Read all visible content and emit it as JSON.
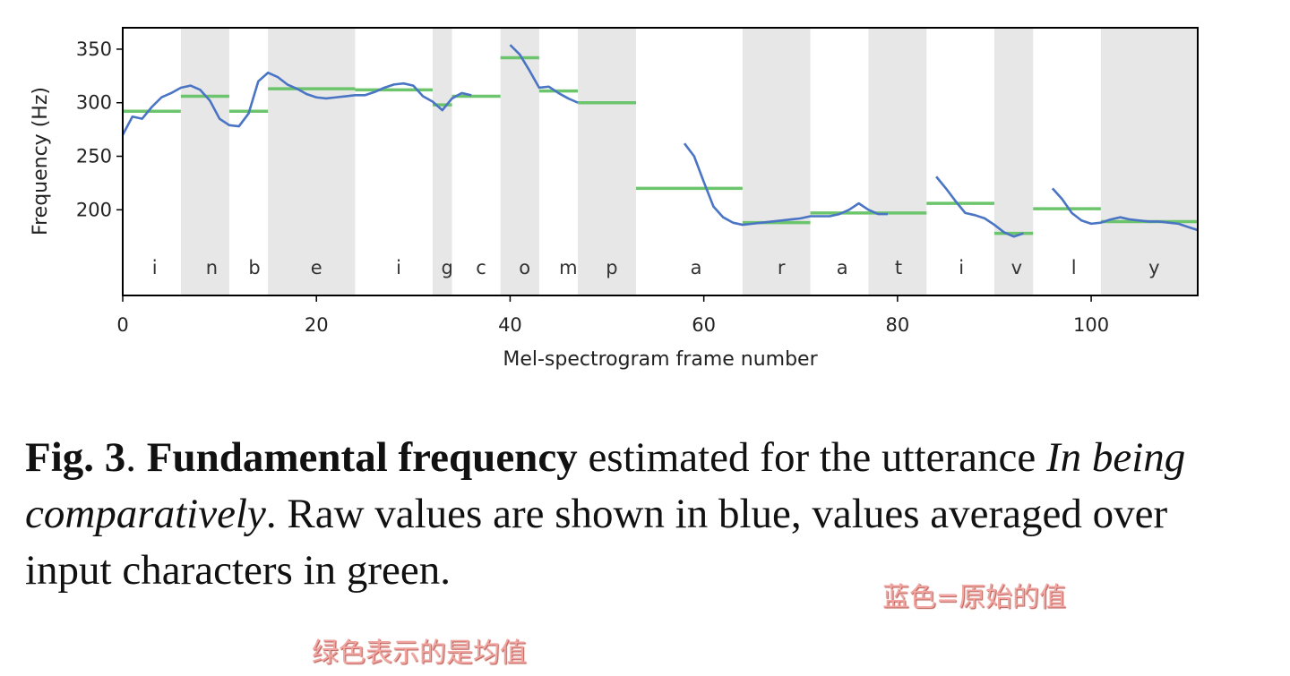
{
  "chart_data": {
    "type": "line",
    "title": "",
    "xlabel": "Mel-spectrogram frame number",
    "ylabel": "Frequency (Hz)",
    "xlim": [
      0,
      111
    ],
    "ylim": [
      120,
      370
    ],
    "x_ticks": [
      0,
      20,
      40,
      60,
      80,
      100
    ],
    "y_ticks": [
      200,
      250,
      300,
      350
    ],
    "grid": false,
    "legend": "none",
    "colors": {
      "raw": "#4a74c4",
      "avg": "#6cc56c",
      "shade": "#e7e7e7",
      "axis": "#000000"
    },
    "shaded_spans": [
      [
        6,
        11
      ],
      [
        15,
        24
      ],
      [
        32,
        34
      ],
      [
        39,
        43
      ],
      [
        47,
        53
      ],
      [
        64,
        71
      ],
      [
        77,
        83
      ],
      [
        90,
        94
      ],
      [
        101,
        111
      ]
    ],
    "characters": [
      {
        "char": "i",
        "x": 3.3
      },
      {
        "char": "n",
        "x": 9.2
      },
      {
        "char": "b",
        "x": 13.6
      },
      {
        "char": "e",
        "x": 20.0
      },
      {
        "char": "i",
        "x": 28.5
      },
      {
        "char": "g",
        "x": 33.5
      },
      {
        "char": "c",
        "x": 37.0
      },
      {
        "char": "o",
        "x": 41.5
      },
      {
        "char": "m",
        "x": 46.0
      },
      {
        "char": "p",
        "x": 50.5
      },
      {
        "char": "a",
        "x": 59.2
      },
      {
        "char": "r",
        "x": 68.0
      },
      {
        "char": "a",
        "x": 74.3
      },
      {
        "char": "t",
        "x": 80.1
      },
      {
        "char": "i",
        "x": 86.6
      },
      {
        "char": "v",
        "x": 92.3
      },
      {
        "char": "l",
        "x": 98.2
      },
      {
        "char": "y",
        "x": 106.5
      }
    ],
    "series": [
      {
        "name": "raw",
        "segments": [
          [
            [
              0,
              270
            ],
            [
              1,
              287
            ],
            [
              2,
              285
            ],
            [
              3,
              296
            ],
            [
              4,
              305
            ],
            [
              5,
              309
            ],
            [
              6,
              314
            ],
            [
              7,
              316
            ],
            [
              8,
              312
            ],
            [
              9,
              302
            ],
            [
              10,
              285
            ],
            [
              11,
              279
            ],
            [
              12,
              278
            ],
            [
              13,
              290
            ],
            [
              14,
              320
            ],
            [
              15,
              328
            ],
            [
              16,
              324
            ],
            [
              17,
              317
            ],
            [
              18,
              313
            ],
            [
              19,
              308
            ],
            [
              20,
              305
            ],
            [
              21,
              304
            ],
            [
              22,
              305
            ],
            [
              23,
              306
            ],
            [
              24,
              307
            ],
            [
              25,
              307
            ],
            [
              26,
              310
            ],
            [
              27,
              314
            ],
            [
              28,
              317
            ],
            [
              29,
              318
            ],
            [
              30,
              316
            ],
            [
              31,
              306
            ],
            [
              32,
              301
            ],
            [
              33,
              293
            ],
            [
              34,
              304
            ],
            [
              35,
              309
            ],
            [
              36,
              307
            ]
          ],
          [
            [
              40,
              354
            ],
            [
              41,
              345
            ],
            [
              42,
              330
            ],
            [
              43,
              314
            ],
            [
              44,
              315
            ],
            [
              45,
              309
            ],
            [
              46,
              304
            ],
            [
              47,
              300
            ]
          ],
          [
            [
              58,
              262
            ],
            [
              59,
              250
            ],
            [
              60,
              226
            ],
            [
              61,
              203
            ],
            [
              62,
              193
            ],
            [
              63,
              188
            ],
            [
              64,
              186
            ],
            [
              65,
              187
            ],
            [
              66,
              188
            ],
            [
              67,
              189
            ],
            [
              68,
              190
            ],
            [
              69,
              191
            ],
            [
              70,
              192
            ],
            [
              71,
              194
            ],
            [
              72,
              194
            ],
            [
              73,
              194
            ],
            [
              74,
              196
            ],
            [
              75,
              200
            ],
            [
              76,
              206
            ],
            [
              77,
              200
            ],
            [
              78,
              196
            ],
            [
              79,
              196
            ]
          ],
          [
            [
              84,
              231
            ],
            [
              85,
              220
            ],
            [
              86,
              208
            ],
            [
              87,
              197
            ],
            [
              88,
              195
            ],
            [
              89,
              192
            ],
            [
              90,
              186
            ],
            [
              91,
              179
            ],
            [
              92,
              175
            ],
            [
              93,
              178
            ]
          ],
          [
            [
              96,
              220
            ],
            [
              97,
              210
            ],
            [
              98,
              197
            ],
            [
              99,
              190
            ],
            [
              100,
              187
            ],
            [
              101,
              188
            ],
            [
              102,
              191
            ],
            [
              103,
              193
            ],
            [
              104,
              191
            ],
            [
              105,
              190
            ],
            [
              106,
              189
            ],
            [
              107,
              189
            ],
            [
              108,
              188
            ],
            [
              109,
              187
            ],
            [
              110,
              184
            ],
            [
              111,
              181
            ]
          ]
        ]
      },
      {
        "name": "averaged",
        "segments": [
          [
            [
              0,
              292
            ],
            [
              6,
              292
            ]
          ],
          [
            [
              6,
              306
            ],
            [
              11,
              306
            ]
          ],
          [
            [
              11,
              292
            ],
            [
              15,
              292
            ]
          ],
          [
            [
              15,
              313
            ],
            [
              24,
              313
            ]
          ],
          [
            [
              24,
              312
            ],
            [
              32,
              312
            ]
          ],
          [
            [
              32,
              298
            ],
            [
              34,
              298
            ]
          ],
          [
            [
              34,
              306
            ],
            [
              39,
              306
            ]
          ],
          [
            [
              39,
              342
            ],
            [
              43,
              342
            ]
          ],
          [
            [
              43,
              311
            ],
            [
              47,
              311
            ]
          ],
          [
            [
              47,
              300
            ],
            [
              53,
              300
            ]
          ],
          [
            [
              53,
              220
            ],
            [
              64,
              220
            ]
          ],
          [
            [
              64,
              188
            ],
            [
              71,
              188
            ]
          ],
          [
            [
              71,
              197
            ],
            [
              77,
              197
            ]
          ],
          [
            [
              77,
              197
            ],
            [
              83,
              197
            ]
          ],
          [
            [
              83,
              206
            ],
            [
              90,
              206
            ]
          ],
          [
            [
              90,
              178
            ],
            [
              94,
              178
            ]
          ],
          [
            [
              94,
              201
            ],
            [
              101,
              201
            ]
          ],
          [
            [
              101,
              189
            ],
            [
              111,
              189
            ]
          ]
        ]
      }
    ]
  },
  "caption": {
    "fig_label": "Fig. 3",
    "sep": ". ",
    "bold_term": "Fundamental frequency",
    "text1": " estimated for the utterance ",
    "italic_utterance": "In being comparatively",
    "text2": ". Raw values are shown in blue, values averaged over input characters in green."
  },
  "annotations": {
    "blue_note": "蓝色=原始的值",
    "green_note": "绿色表示的是均值"
  }
}
